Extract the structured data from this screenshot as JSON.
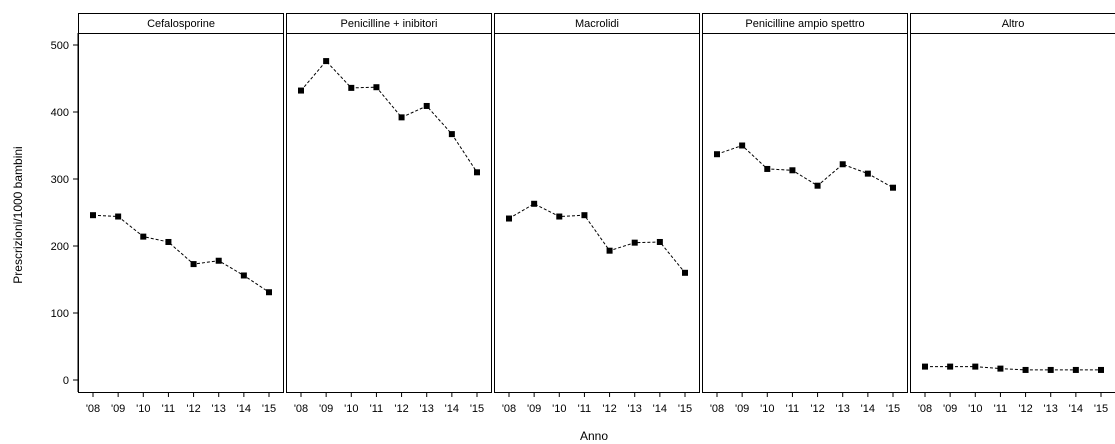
{
  "chart_data": {
    "type": "line",
    "xlabel": "Anno",
    "ylabel": "Prescrizioni/1000 bambini",
    "ylim": [
      -15,
      520
    ],
    "yticks": [
      0,
      100,
      200,
      300,
      400,
      500
    ],
    "x": [
      "'08",
      "'09",
      "'10",
      "'11",
      "'12",
      "'13",
      "'14",
      "'15"
    ],
    "grid": false,
    "line_style": "dashed",
    "marker": "square",
    "colors": {
      "line": "#000000",
      "marker": "#000000",
      "panel_border": "#000000"
    },
    "panels": [
      {
        "name": "Cefalosporine",
        "values": [
          246,
          244,
          214,
          206,
          173,
          178,
          156,
          131
        ]
      },
      {
        "name": "Penicilline + inibitori",
        "values": [
          432,
          476,
          436,
          437,
          392,
          409,
          367,
          310
        ]
      },
      {
        "name": "Macrolidi",
        "values": [
          241,
          263,
          244,
          246,
          193,
          205,
          206,
          160
        ]
      },
      {
        "name": "Penicilline ampio spettro",
        "values": [
          337,
          350,
          315,
          313,
          290,
          322,
          308,
          287
        ]
      },
      {
        "name": "Altro",
        "values": [
          20,
          20,
          20,
          17,
          15,
          15,
          15,
          15
        ]
      }
    ]
  }
}
